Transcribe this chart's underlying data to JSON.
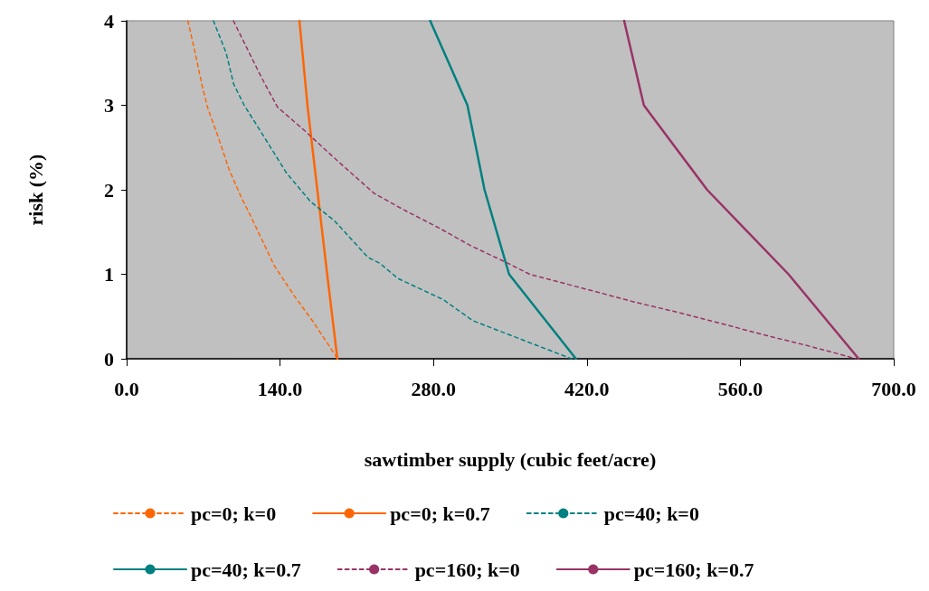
{
  "chart_data": {
    "type": "line",
    "xlabel": "sawtimber supply (cubic feet/acre)",
    "ylabel": "risk (%)",
    "xlim": [
      0,
      700
    ],
    "xticks": [
      {
        "value": 0,
        "label": "0.0"
      },
      {
        "value": 140,
        "label": "140.0"
      },
      {
        "value": 280,
        "label": "280.0"
      },
      {
        "value": 420,
        "label": "420.0"
      },
      {
        "value": 560,
        "label": "560.0"
      },
      {
        "value": 700,
        "label": "700.0"
      }
    ],
    "ylim": [
      0,
      4
    ],
    "yticks": [
      0,
      1,
      2,
      3,
      4
    ],
    "grid": false,
    "legend": "bottom",
    "marker": "none",
    "series": [
      {
        "name": "pc=0; k=0",
        "color": "#ff6600",
        "line_style": "dashed",
        "x": [
          55.9,
          62.5,
          68.8,
          73.7,
          83.9,
          93.5,
          104.6,
          112.8,
          134.8,
          152.7,
          170.6,
          192.6
        ],
        "values": [
          4.0,
          3.62,
          3.24,
          2.98,
          2.61,
          2.24,
          1.91,
          1.7,
          1.1,
          0.75,
          0.43,
          0
        ]
      },
      {
        "name": "pc=0; k=0.7",
        "color": "#ff6600",
        "line_style": "solid",
        "x": [
          192.3,
          183,
          174,
          165,
          157.7
        ],
        "values": [
          0,
          1,
          2,
          3,
          4
        ]
      },
      {
        "name": "pc=40; k=0",
        "color": "#008080",
        "line_style": "dashed",
        "x": [
          79.2,
          90.8,
          97.7,
          107.3,
          123.8,
          134.8,
          145.8,
          167.8,
          189.9,
          220.2,
          231.1,
          247.6,
          288.9,
          316,
          406
        ],
        "values": [
          4.0,
          3.62,
          3.25,
          3.0,
          2.66,
          2.43,
          2.2,
          1.86,
          1.63,
          1.2,
          1.13,
          0.95,
          0.7,
          0.45,
          0
        ]
      },
      {
        "name": "pc=40; k=0.7",
        "color": "#008080",
        "line_style": "solid",
        "x": [
          410,
          349,
          326.6,
          311,
          277
        ],
        "values": [
          0,
          1,
          2,
          3,
          4
        ]
      },
      {
        "name": "pc=160; k=0",
        "color": "#993366",
        "line_style": "dashed",
        "x": [
          97.4,
          123,
          137.6,
          162.4,
          192.6,
          225.6,
          251.8,
          286.2,
          313.7,
          348,
          367.8,
          426.3,
          463.8,
          502.8,
          541.9,
          579.3,
          619.9,
          657.4,
          665
        ],
        "values": [
          4.0,
          3.33,
          2.98,
          2.7,
          2.34,
          1.96,
          1.77,
          1.54,
          1.34,
          1.13,
          1.0,
          0.8,
          0.67,
          0.55,
          0.42,
          0.29,
          0.16,
          0.03,
          0
        ]
      },
      {
        "name": "pc=160; k=0.7",
        "color": "#993366",
        "line_style": "solid",
        "x": [
          668,
          604,
          529.7,
          472,
          454
        ],
        "values": [
          0,
          1,
          2,
          3,
          4
        ]
      }
    ]
  }
}
